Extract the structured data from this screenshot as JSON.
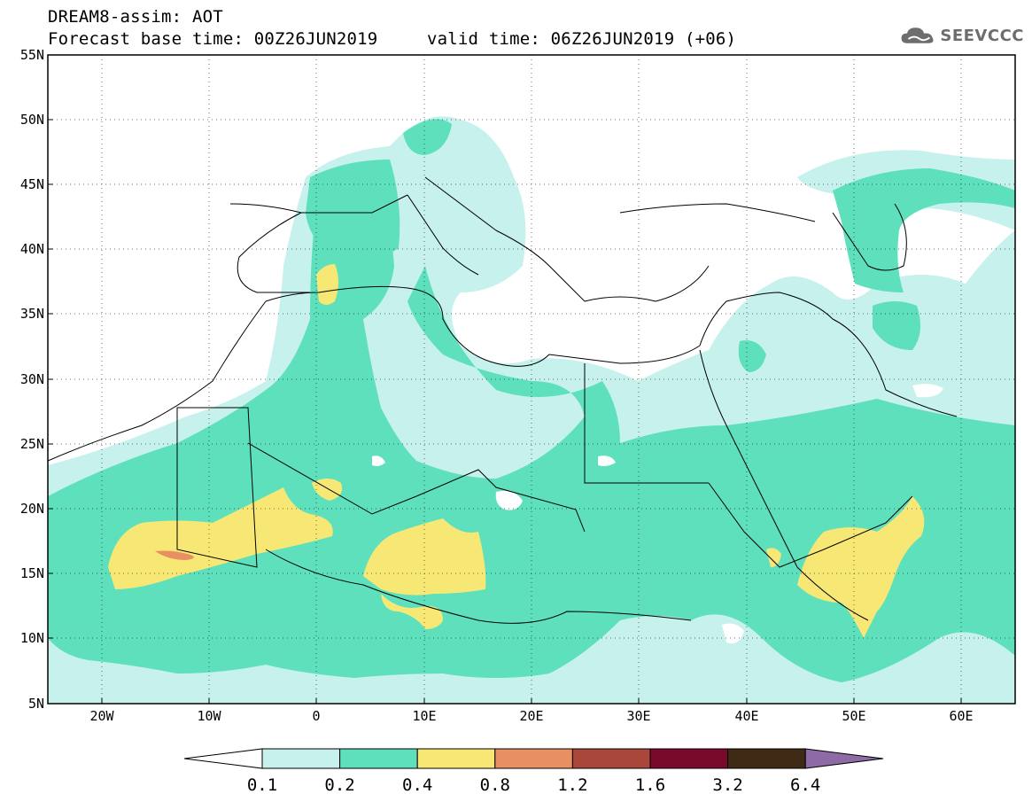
{
  "header": {
    "title": "DREAM8-assim: AOT",
    "base_time": "Forecast base time: 00Z26JUN2019",
    "valid_time": "valid time: 06Z26JUN2019 (+06)"
  },
  "logo": {
    "text": "SEEVCCC",
    "icon": "cloud-icon"
  },
  "map": {
    "lon_range": [
      -25,
      65
    ],
    "lat_range": [
      5,
      55
    ],
    "lat_ticks": [
      "55N",
      "50N",
      "45N",
      "40N",
      "35N",
      "30N",
      "25N",
      "20N",
      "15N",
      "10N",
      "5N"
    ],
    "lon_ticks": [
      "20W",
      "10W",
      "0",
      "10E",
      "20E",
      "30E",
      "40E",
      "50E",
      "60E"
    ],
    "gridlines": "dotted"
  },
  "colorbar": {
    "labels": [
      "0.1",
      "0.2",
      "0.4",
      "0.8",
      "1.2",
      "1.6",
      "3.2",
      "6.4"
    ],
    "colors": [
      "#c6f1ec",
      "#5ee0bd",
      "#f7e876",
      "#e99063",
      "#a9483a",
      "#7a0a2a",
      "#3f2a16",
      "#8e6aa6"
    ]
  }
}
